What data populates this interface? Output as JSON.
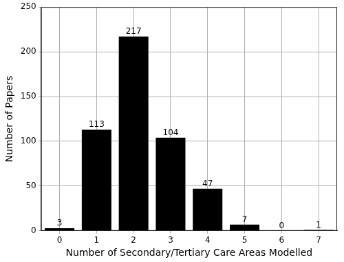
{
  "chart_data": {
    "type": "bar",
    "x_label": "Number of Secondary/Tertiary Care Areas Modelled",
    "y_label": "Number of Papers",
    "categories": [
      "0",
      "1",
      "2",
      "3",
      "4",
      "5",
      "6",
      "7"
    ],
    "values": [
      3,
      113,
      217,
      104,
      47,
      7,
      0,
      1
    ],
    "color": "#000000",
    "ylim": [
      0,
      250
    ],
    "yticks": [
      0,
      50,
      100,
      150,
      200,
      250
    ],
    "grid": true,
    "data_labels": true
  }
}
